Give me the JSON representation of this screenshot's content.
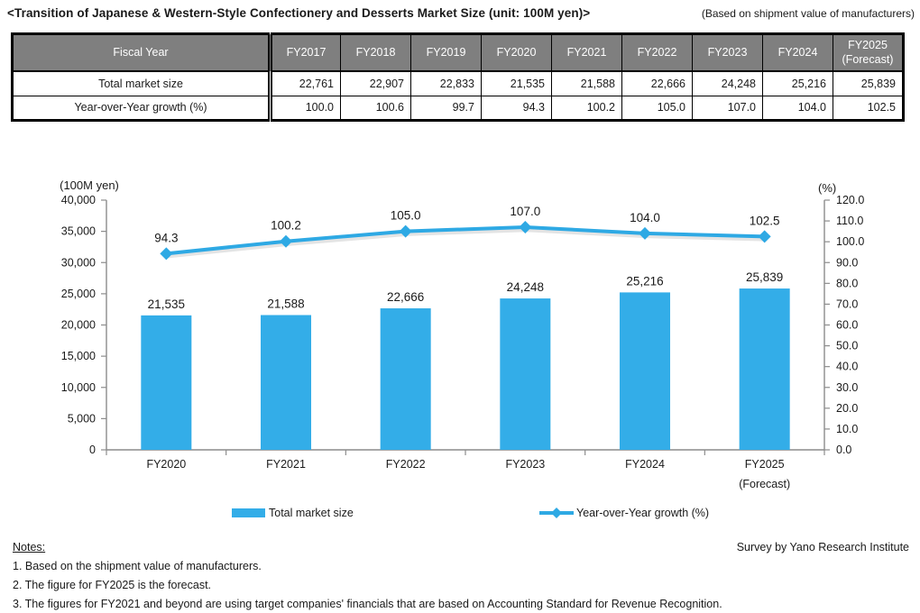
{
  "header": {
    "title": "<Transition of Japanese & Western-Style Confectionery and Desserts Market Size (unit: 100M yen)>",
    "basis_note": "(Based on shipment value of manufacturers)"
  },
  "table": {
    "corner_label": "Fiscal Year",
    "years": [
      "FY2017",
      "FY2018",
      "FY2019",
      "FY2020",
      "FY2021",
      "FY2022",
      "FY2023",
      "FY2024",
      "FY2025\n(Forecast)"
    ],
    "rows": [
      {
        "label": "Total market size",
        "values": [
          "22,761",
          "22,907",
          "22,833",
          "21,535",
          "21,588",
          "22,666",
          "24,248",
          "25,216",
          "25,839"
        ]
      },
      {
        "label": "Year-over-Year growth (%)",
        "values": [
          "100.0",
          "100.6",
          "99.7",
          "94.3",
          "100.2",
          "105.0",
          "107.0",
          "104.0",
          "102.5"
        ]
      }
    ],
    "header_bg": "#7f7f7f"
  },
  "chart_data": {
    "type": "bar+line combo",
    "categories": [
      "FY2020",
      "FY2021",
      "FY2022",
      "FY2023",
      "FY2024",
      "FY2025\n(Forecast)"
    ],
    "series": [
      {
        "name": "Total market size",
        "type": "bar",
        "axis": "left",
        "values": [
          21535,
          21588,
          22666,
          24248,
          25216,
          25839
        ],
        "labels": [
          "21,535",
          "21,588",
          "22,666",
          "24,248",
          "25,216",
          "25,839"
        ],
        "color": "#33ADE8"
      },
      {
        "name": "Year-over-Year growth (%)",
        "type": "line",
        "axis": "right",
        "values": [
          94.3,
          100.2,
          105.0,
          107.0,
          104.0,
          102.5
        ],
        "labels": [
          "94.3",
          "100.2",
          "105.0",
          "107.0",
          "104.0",
          "102.5"
        ],
        "color": "#2EA9E4"
      }
    ],
    "left_axis": {
      "title": "(100M yen)",
      "min": 0,
      "max": 40000,
      "step": 5000,
      "tick_labels": [
        "0",
        "5,000",
        "10,000",
        "15,000",
        "20,000",
        "25,000",
        "30,000",
        "35,000",
        "40,000"
      ]
    },
    "right_axis": {
      "title": "(%)",
      "min": 0,
      "max": 120,
      "step": 10,
      "tick_labels": [
        "0.0",
        "10.0",
        "20.0",
        "30.0",
        "40.0",
        "50.0",
        "60.0",
        "70.0",
        "80.0",
        "90.0",
        "100.0",
        "110.0",
        "120.0"
      ]
    },
    "grid": false,
    "legend_position": "bottom",
    "axis_color": "#8c8c8c"
  },
  "notes": {
    "heading": "Notes:",
    "items": [
      "1. Based on the shipment value of manufacturers.",
      "2. The figure for FY2025 is the forecast.",
      "3. The figures for FY2021 and beyond are using target companies' financials that are based on Accounting Standard for Revenue Recognition."
    ],
    "credit": "Survey by Yano Research Institute"
  }
}
